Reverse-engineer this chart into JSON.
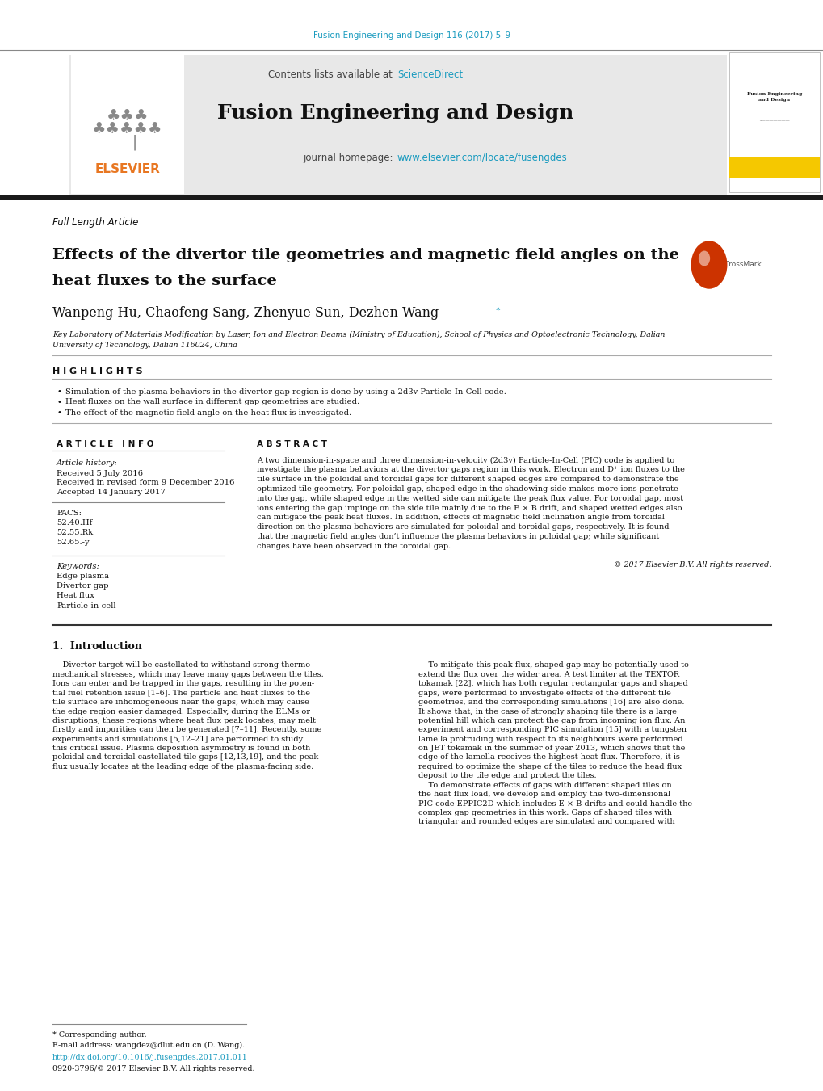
{
  "page_width": 10.2,
  "page_height": 13.51,
  "bg_color": "#ffffff",
  "header_bg_color": "#e8e8e8",
  "journal_cite_color": "#1a9bbf",
  "sciencedirect_color": "#1a9bbf",
  "elsevier_color": "#e87722",
  "journal_url_color": "#1a9bbf",
  "journal_cite": "Fusion Engineering and Design 116 (2017) 5–9",
  "header_journal": "Fusion Engineering and Design",
  "article_type": "Full Length Article",
  "title_line1": "Effects of the divertor tile geometries and magnetic field angles on the",
  "title_line2": "heat fluxes to the surface",
  "authors_main": "Wanpeng Hu, Chaofeng Sang, Zhenyue Sun, Dezhen Wang",
  "affil_line1": "Key Laboratory of Materials Modification by Laser, Ion and Electron Beams (Ministry of Education), School of Physics and Optoelectronic Technology, Dalian",
  "affil_line2": "University of Technology, Dalian 116024, China",
  "highlights_title": "H I G H L I G H T S",
  "highlights": [
    "Simulation of the plasma behaviors in the divertor gap region is done by using a 2d3v Particle-In-Cell code.",
    "Heat fluxes on the wall surface in different gap geometries are studied.",
    "The effect of the magnetic field angle on the heat flux is investigated."
  ],
  "article_info_title": "A R T I C L E   I N F O",
  "abstract_title": "A B S T R A C T",
  "article_history_label": "Article history:",
  "received": "Received 5 July 2016",
  "received_revised": "Received in revised form 9 December 2016",
  "accepted": "Accepted 14 January 2017",
  "pacs_label": "PACS:",
  "pacs": [
    "52.40.Hf",
    "52.55.Rk",
    "52.65.-y"
  ],
  "keywords_label": "Keywords:",
  "keywords": [
    "Edge plasma",
    "Divertor gap",
    "Heat flux",
    "Particle-in-cell"
  ],
  "abstract_lines": [
    "A two dimension-in-space and three dimension-in-velocity (2d3v) Particle-In-Cell (PIC) code is applied to",
    "investigate the plasma behaviors at the divertor gaps region in this work. Electron and D⁺ ion fluxes to the",
    "tile surface in the poloidal and toroidal gaps for different shaped edges are compared to demonstrate the",
    "optimized tile geometry. For poloidal gap, shaped edge in the shadowing side makes more ions penetrate",
    "into the gap, while shaped edge in the wetted side can mitigate the peak flux value. For toroidal gap, most",
    "ions entering the gap impinge on the side tile mainly due to the E × B drift, and shaped wetted edges also",
    "can mitigate the peak heat fluxes. In addition, effects of magnetic field inclination angle from toroidal",
    "direction on the plasma behaviors are simulated for poloidal and toroidal gaps, respectively. It is found",
    "that the magnetic field angles don’t influence the plasma behaviors in poloidal gap; while significant",
    "changes have been observed in the toroidal gap."
  ],
  "copyright": "© 2017 Elsevier B.V. All rights reserved.",
  "intro_title": "1.  Introduction",
  "intro1_lines": [
    "    Divertor target will be castellated to withstand strong thermo-",
    "mechanical stresses, which may leave many gaps between the tiles.",
    "Ions can enter and be trapped in the gaps, resulting in the poten-",
    "tial fuel retention issue [1–6]. The particle and heat fluxes to the",
    "tile surface are inhomogeneous near the gaps, which may cause",
    "the edge region easier damaged. Especially, during the ELMs or",
    "disruptions, these regions where heat flux peak locates, may melt",
    "firstly and impurities can then be generated [7–11]. Recently, some",
    "experiments and simulations [5,12–21] are performed to study",
    "this critical issue. Plasma deposition asymmetry is found in both",
    "poloidal and toroidal castellated tile gaps [12,13,19], and the peak",
    "flux usually locates at the leading edge of the plasma-facing side."
  ],
  "intro2_lines": [
    "    To mitigate this peak flux, shaped gap may be potentially used to",
    "extend the flux over the wider area. A test limiter at the TEXTOR",
    "tokamak [22], which has both regular rectangular gaps and shaped",
    "gaps, were performed to investigate effects of the different tile",
    "geometries, and the corresponding simulations [16] are also done.",
    "It shows that, in the case of strongly shaping tile there is a large",
    "potential hill which can protect the gap from incoming ion flux. An",
    "experiment and corresponding PIC simulation [15] with a tungsten",
    "lamella protruding with respect to its neighbours were performed",
    "on JET tokamak in the summer of year 2013, which shows that the",
    "edge of the lamella receives the highest heat flux. Therefore, it is",
    "required to optimize the shape of the tiles to reduce the head flux",
    "deposit to the tile edge and protect the tiles.",
    "    To demonstrate effects of gaps with different shaped tiles on",
    "the heat flux load, we develop and employ the two-dimensional",
    "PIC code EPPIC2D which includes E × B drifts and could handle the",
    "complex gap geometries in this work. Gaps of shaped tiles with",
    "triangular and rounded edges are simulated and compared with"
  ],
  "footnote_star": "* Corresponding author.",
  "footnote_email": "E-mail address: wangdez@dlut.edu.cn (D. Wang).",
  "doi": "http://dx.doi.org/10.1016/j.fusengdes.2017.01.011",
  "issn": "0920-3796/© 2017 Elsevier B.V. All rights reserved.",
  "thick_bar_color": "#1a1a1a"
}
